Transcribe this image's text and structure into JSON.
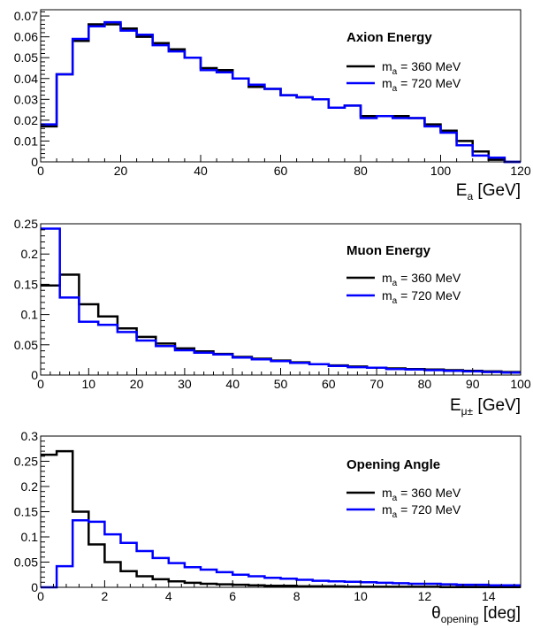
{
  "chart_data": [
    {
      "type": "line",
      "title": "Axion Energy",
      "xlabel": {
        "main": "E",
        "sub": "a",
        "unit": " [GeV]"
      },
      "ylabel": "",
      "xlim": [
        0,
        120
      ],
      "ylim": [
        0,
        0.073
      ],
      "xticks": [
        0,
        20,
        40,
        60,
        80,
        100,
        120
      ],
      "xtick_labels": [
        "0",
        "20",
        "40",
        "60",
        "80",
        "100",
        "120"
      ],
      "yticks": [
        0,
        0.01,
        0.02,
        0.03,
        0.04,
        0.05,
        0.06,
        0.07
      ],
      "ytick_labels": [
        "0",
        "0.01",
        "0.02",
        "0.03",
        "0.04",
        "0.05",
        "0.06",
        "0.07"
      ],
      "grid": false,
      "legend_position": "top-right",
      "bin_edges": [
        0,
        4,
        8,
        12,
        16,
        20,
        24,
        28,
        32,
        36,
        40,
        44,
        48,
        52,
        56,
        60,
        64,
        68,
        72,
        76,
        80,
        84,
        88,
        92,
        96,
        100,
        104,
        108,
        112,
        116,
        120
      ],
      "series": [
        {
          "legend": {
            "prefix": "m",
            "sub": "a",
            "suffix": " = 360 MeV"
          },
          "color": "#000000",
          "values": [
            0.017,
            0.042,
            0.058,
            0.066,
            0.066,
            0.064,
            0.06,
            0.057,
            0.054,
            0.05,
            0.045,
            0.044,
            0.04,
            0.036,
            0.035,
            0.032,
            0.031,
            0.03,
            0.026,
            0.027,
            0.022,
            0.022,
            0.022,
            0.021,
            0.018,
            0.015,
            0.01,
            0.005,
            0.001,
            0.0
          ]
        },
        {
          "legend": {
            "prefix": "m",
            "sub": "a",
            "suffix": " = 720 MeV"
          },
          "color": "#0000ff",
          "values": [
            0.018,
            0.042,
            0.059,
            0.065,
            0.067,
            0.063,
            0.061,
            0.056,
            0.053,
            0.05,
            0.044,
            0.043,
            0.04,
            0.037,
            0.035,
            0.032,
            0.031,
            0.03,
            0.026,
            0.027,
            0.021,
            0.022,
            0.021,
            0.021,
            0.017,
            0.014,
            0.008,
            0.003,
            0.002,
            0.0
          ]
        }
      ]
    },
    {
      "type": "line",
      "title": "Muon Energy",
      "xlabel": {
        "main": "E",
        "sub": "μ±",
        "unit": " [GeV]"
      },
      "ylabel": "",
      "xlim": [
        0,
        100
      ],
      "ylim": [
        0,
        0.25
      ],
      "xticks": [
        0,
        10,
        20,
        30,
        40,
        50,
        60,
        70,
        80,
        90,
        100
      ],
      "xtick_labels": [
        "0",
        "10",
        "20",
        "30",
        "40",
        "50",
        "60",
        "70",
        "80",
        "90",
        "100"
      ],
      "yticks": [
        0,
        0.05,
        0.1,
        0.15,
        0.2,
        0.25
      ],
      "ytick_labels": [
        "0",
        "0.05",
        "0.1",
        "0.15",
        "0.2",
        "0.25"
      ],
      "grid": false,
      "legend_position": "top-right",
      "bin_edges": [
        0,
        4,
        8,
        12,
        16,
        20,
        24,
        28,
        32,
        36,
        40,
        44,
        48,
        52,
        56,
        60,
        64,
        68,
        72,
        76,
        80,
        84,
        88,
        92,
        96,
        100
      ],
      "series": [
        {
          "legend": {
            "prefix": "m",
            "sub": "a",
            "suffix": " = 360 MeV"
          },
          "color": "#000000",
          "values": [
            0.148,
            0.166,
            0.117,
            0.097,
            0.077,
            0.063,
            0.052,
            0.044,
            0.039,
            0.035,
            0.03,
            0.027,
            0.024,
            0.021,
            0.018,
            0.016,
            0.014,
            0.012,
            0.011,
            0.01,
            0.009,
            0.008,
            0.007,
            0.006,
            0.005
          ]
        },
        {
          "legend": {
            "prefix": "m",
            "sub": "a",
            "suffix": " = 720 MeV"
          },
          "color": "#0000ff",
          "values": [
            0.242,
            0.128,
            0.088,
            0.083,
            0.071,
            0.057,
            0.048,
            0.041,
            0.037,
            0.034,
            0.029,
            0.026,
            0.023,
            0.02,
            0.018,
            0.015,
            0.013,
            0.012,
            0.01,
            0.009,
            0.008,
            0.007,
            0.006,
            0.005,
            0.004
          ]
        }
      ]
    },
    {
      "type": "line",
      "title": "Opening Angle",
      "xlabel": {
        "main": "θ",
        "sub": "opening",
        "unit": " [deg]"
      },
      "ylabel": "",
      "xlim": [
        0,
        15
      ],
      "ylim": [
        0,
        0.3
      ],
      "xticks": [
        0,
        2,
        4,
        6,
        8,
        10,
        12,
        14
      ],
      "xtick_labels": [
        "0",
        "2",
        "4",
        "6",
        "8",
        "10",
        "12",
        "14"
      ],
      "yticks": [
        0,
        0.05,
        0.1,
        0.15,
        0.2,
        0.25,
        0.3
      ],
      "ytick_labels": [
        "0",
        "0.05",
        "0.1",
        "0.15",
        "0.2",
        "0.25",
        "0.3"
      ],
      "grid": false,
      "legend_position": "top-right",
      "bin_edges": [
        0,
        0.5,
        1,
        1.5,
        2,
        2.5,
        3,
        3.5,
        4,
        4.5,
        5,
        5.5,
        6,
        6.5,
        7,
        7.5,
        8,
        8.5,
        9,
        9.5,
        10,
        10.5,
        11,
        11.5,
        12,
        12.5,
        13,
        13.5,
        14,
        14.5,
        15
      ],
      "series": [
        {
          "legend": {
            "prefix": "m",
            "sub": "a",
            "suffix": " = 360 MeV"
          },
          "color": "#000000",
          "values": [
            0.263,
            0.27,
            0.15,
            0.085,
            0.05,
            0.032,
            0.022,
            0.016,
            0.012,
            0.009,
            0.007,
            0.006,
            0.005,
            0.004,
            0.003,
            0.003,
            0.002,
            0.002,
            0.002,
            0.001,
            0.001,
            0.001,
            0.001,
            0.001,
            0.001,
            0.0005,
            0.0005,
            0.0005,
            0.0005,
            0.0005
          ]
        },
        {
          "legend": {
            "prefix": "m",
            "sub": "a",
            "suffix": " = 720 MeV"
          },
          "color": "#0000ff",
          "values": [
            0.0,
            0.042,
            0.133,
            0.13,
            0.105,
            0.088,
            0.072,
            0.058,
            0.048,
            0.04,
            0.035,
            0.03,
            0.025,
            0.022,
            0.019,
            0.017,
            0.015,
            0.013,
            0.012,
            0.011,
            0.01,
            0.009,
            0.008,
            0.007,
            0.007,
            0.006,
            0.005,
            0.005,
            0.004,
            0.004
          ]
        }
      ]
    }
  ]
}
